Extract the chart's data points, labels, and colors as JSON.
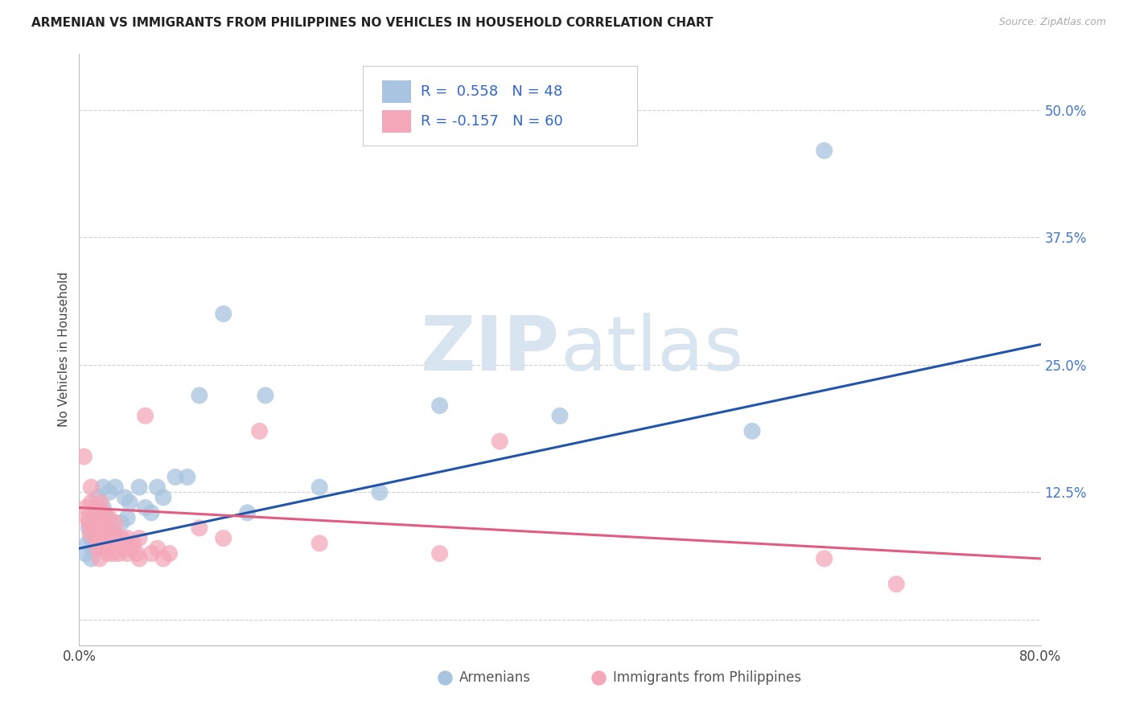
{
  "title": "ARMENIAN VS IMMIGRANTS FROM PHILIPPINES NO VEHICLES IN HOUSEHOLD CORRELATION CHART",
  "source": "Source: ZipAtlas.com",
  "ylabel": "No Vehicles in Household",
  "xlim": [
    0.0,
    0.8
  ],
  "ylim": [
    -0.025,
    0.555
  ],
  "yticks": [
    0.0,
    0.125,
    0.25,
    0.375,
    0.5
  ],
  "ytick_labels": [
    "",
    "12.5%",
    "25.0%",
    "37.5%",
    "50.0%"
  ],
  "xticks": [
    0.0,
    0.2,
    0.4,
    0.6,
    0.8
  ],
  "xtick_labels": [
    "0.0%",
    "",
    "",
    "",
    "80.0%"
  ],
  "armenian_color": "#a8c4e0",
  "philippines_color": "#f4a7b9",
  "armenian_line_color": "#2255aa",
  "philippines_line_color": "#e05c80",
  "R_armenian": 0.558,
  "N_armenian": 48,
  "R_philippines": -0.157,
  "N_philippines": 60,
  "legend_label_1": "Armenians",
  "legend_label_2": "Immigrants from Philippines",
  "background_color": "#ffffff",
  "grid_color": "#d0d0d0",
  "title_fontsize": 11,
  "blue_line_x0": 0.0,
  "blue_line_y0": 0.07,
  "blue_line_x1": 0.8,
  "blue_line_y1": 0.27,
  "pink_line_x0": 0.0,
  "pink_line_y0": 0.11,
  "pink_line_x1": 0.8,
  "pink_line_y1": 0.06,
  "armenian_scatter": [
    [
      0.005,
      0.065
    ],
    [
      0.007,
      0.075
    ],
    [
      0.008,
      0.09
    ],
    [
      0.009,
      0.1
    ],
    [
      0.01,
      0.06
    ],
    [
      0.01,
      0.08
    ],
    [
      0.01,
      0.095
    ],
    [
      0.011,
      0.085
    ],
    [
      0.012,
      0.07
    ],
    [
      0.013,
      0.095
    ],
    [
      0.015,
      0.08
    ],
    [
      0.015,
      0.095
    ],
    [
      0.015,
      0.105
    ],
    [
      0.015,
      0.12
    ],
    [
      0.017,
      0.075
    ],
    [
      0.018,
      0.09
    ],
    [
      0.018,
      0.1
    ],
    [
      0.02,
      0.08
    ],
    [
      0.02,
      0.095
    ],
    [
      0.02,
      0.11
    ],
    [
      0.02,
      0.13
    ],
    [
      0.022,
      0.085
    ],
    [
      0.023,
      0.1
    ],
    [
      0.025,
      0.09
    ],
    [
      0.025,
      0.125
    ],
    [
      0.028,
      0.085
    ],
    [
      0.03,
      0.13
    ],
    [
      0.035,
      0.095
    ],
    [
      0.038,
      0.12
    ],
    [
      0.04,
      0.1
    ],
    [
      0.042,
      0.115
    ],
    [
      0.05,
      0.13
    ],
    [
      0.055,
      0.11
    ],
    [
      0.06,
      0.105
    ],
    [
      0.065,
      0.13
    ],
    [
      0.07,
      0.12
    ],
    [
      0.08,
      0.14
    ],
    [
      0.09,
      0.14
    ],
    [
      0.1,
      0.22
    ],
    [
      0.12,
      0.3
    ],
    [
      0.14,
      0.105
    ],
    [
      0.155,
      0.22
    ],
    [
      0.2,
      0.13
    ],
    [
      0.25,
      0.125
    ],
    [
      0.3,
      0.21
    ],
    [
      0.4,
      0.2
    ],
    [
      0.56,
      0.185
    ],
    [
      0.62,
      0.46
    ]
  ],
  "philippines_scatter": [
    [
      0.004,
      0.16
    ],
    [
      0.006,
      0.11
    ],
    [
      0.007,
      0.1
    ],
    [
      0.008,
      0.095
    ],
    [
      0.009,
      0.085
    ],
    [
      0.01,
      0.115
    ],
    [
      0.01,
      0.13
    ],
    [
      0.012,
      0.09
    ],
    [
      0.013,
      0.1
    ],
    [
      0.014,
      0.08
    ],
    [
      0.015,
      0.07
    ],
    [
      0.015,
      0.085
    ],
    [
      0.015,
      0.095
    ],
    [
      0.015,
      0.11
    ],
    [
      0.016,
      0.075
    ],
    [
      0.017,
      0.06
    ],
    [
      0.018,
      0.09
    ],
    [
      0.018,
      0.1
    ],
    [
      0.018,
      0.115
    ],
    [
      0.02,
      0.08
    ],
    [
      0.02,
      0.095
    ],
    [
      0.02,
      0.105
    ],
    [
      0.022,
      0.075
    ],
    [
      0.022,
      0.085
    ],
    [
      0.022,
      0.095
    ],
    [
      0.024,
      0.065
    ],
    [
      0.024,
      0.08
    ],
    [
      0.025,
      0.07
    ],
    [
      0.025,
      0.085
    ],
    [
      0.025,
      0.1
    ],
    [
      0.027,
      0.075
    ],
    [
      0.028,
      0.065
    ],
    [
      0.03,
      0.075
    ],
    [
      0.03,
      0.085
    ],
    [
      0.03,
      0.095
    ],
    [
      0.032,
      0.08
    ],
    [
      0.033,
      0.065
    ],
    [
      0.035,
      0.07
    ],
    [
      0.035,
      0.08
    ],
    [
      0.038,
      0.075
    ],
    [
      0.04,
      0.065
    ],
    [
      0.04,
      0.08
    ],
    [
      0.042,
      0.07
    ],
    [
      0.045,
      0.075
    ],
    [
      0.048,
      0.065
    ],
    [
      0.05,
      0.06
    ],
    [
      0.05,
      0.08
    ],
    [
      0.055,
      0.2
    ],
    [
      0.06,
      0.065
    ],
    [
      0.065,
      0.07
    ],
    [
      0.07,
      0.06
    ],
    [
      0.075,
      0.065
    ],
    [
      0.1,
      0.09
    ],
    [
      0.12,
      0.08
    ],
    [
      0.15,
      0.185
    ],
    [
      0.2,
      0.075
    ],
    [
      0.3,
      0.065
    ],
    [
      0.35,
      0.175
    ],
    [
      0.62,
      0.06
    ],
    [
      0.68,
      0.035
    ]
  ]
}
